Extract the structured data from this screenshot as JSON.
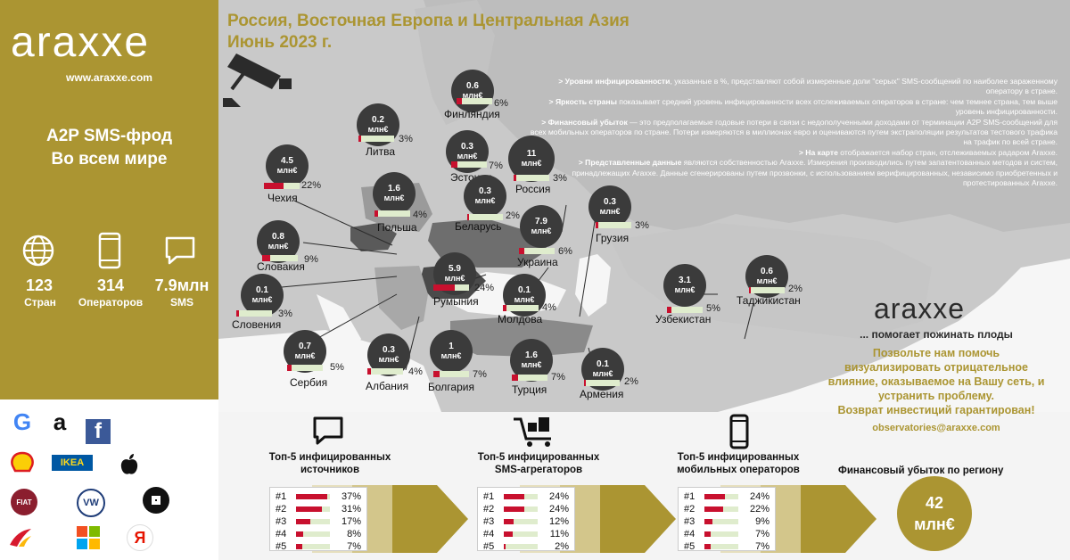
{
  "sidebar": {
    "logo": "araxxe",
    "site": "www.araxxe.com",
    "title_line1": "A2P SMS-фрод",
    "title_line2": "Во всем мире",
    "stats": [
      {
        "value": "123",
        "label": "Стран",
        "icon": "globe-icon"
      },
      {
        "value": "314",
        "label": "Операторов",
        "icon": "phone-icon"
      },
      {
        "value": "7.9млн",
        "label": "SMS",
        "icon": "message-icon"
      }
    ],
    "brands": [
      {
        "name": "google-logo",
        "glyph": "G"
      },
      {
        "name": "amazon-logo",
        "glyph": "a"
      },
      {
        "name": "facebook-logo",
        "glyph": "f"
      },
      {
        "name": "shell-logo",
        "glyph": ""
      },
      {
        "name": "ikea-logo",
        "glyph": "IKEA"
      },
      {
        "name": "apple-logo",
        "glyph": ""
      },
      {
        "name": "fiat-logo",
        "glyph": "FIAT"
      },
      {
        "name": "volkswagen-logo",
        "glyph": "VW"
      },
      {
        "name": "uber-logo",
        "glyph": ""
      },
      {
        "name": "iberia-logo",
        "glyph": ""
      },
      {
        "name": "microsoft-logo",
        "glyph": ""
      },
      {
        "name": "yandex-logo",
        "glyph": "Я"
      }
    ]
  },
  "header": {
    "line1": "Россия, Восточная Европа и Центральная Азия",
    "line2": "Июнь 2023 г."
  },
  "notes": [
    {
      "bold": "> Уровни инфицированности",
      "text": ", указанные в %, представляют собой измеренные доли \"серых\" SMS-сообщений по наиболее зараженному оператору в стране."
    },
    {
      "bold": "> Яркость страны",
      "text": " показывает средний уровень инфицированности всех отслеживаемых операторов в стране: чем темнее страна, тем выше уровень инфицированности."
    },
    {
      "bold": "> Финансовый убыток",
      "text": " — это предполагаемые годовые потери в связи с недополученными доходами от терминации A2P SMS-сообщений для всех мобильных операторов по стране. Потери измеряются в миллионах евро и оцениваются путем экстраполяции результатов тестового трафика на трафик по всей стране."
    },
    {
      "bold": "> На карте",
      "text": " отображается набор стран, отслеживаемых радаром Araxxe."
    },
    {
      "bold": "> Представленные данные",
      "text": " являются собственностью Araxxe. Измерения производились путем запатентованных методов и систем, принадлежащих Araxxe. Данные сгенерированы путем прозвонки, с использованием верифицированных, независимо приобретенных и протестированных Araxxe."
    }
  ],
  "countries": [
    {
      "name": "Финляндия",
      "loss": "0.6",
      "unit": "млн€",
      "pct": "6%",
      "pct_num": 6
    },
    {
      "name": "Литва",
      "loss": "0.2",
      "unit": "млн€",
      "pct": "3%",
      "pct_num": 3
    },
    {
      "name": "Эстония",
      "loss": "0.3",
      "unit": "млн€",
      "pct": "7%",
      "pct_num": 7
    },
    {
      "name": "Россия",
      "loss": "11",
      "unit": "млн€",
      "pct": "3%",
      "pct_num": 3
    },
    {
      "name": "Чехия",
      "loss": "4.5",
      "unit": "млн€",
      "pct": "22%",
      "pct_num": 22
    },
    {
      "name": "Польша",
      "loss": "1.6",
      "unit": "млн€",
      "pct": "4%",
      "pct_num": 4
    },
    {
      "name": "Беларусь",
      "loss": "0.3",
      "unit": "млн€",
      "pct": "2%",
      "pct_num": 2
    },
    {
      "name": "Грузия",
      "loss": "0.3",
      "unit": "млн€",
      "pct": "3%",
      "pct_num": 3
    },
    {
      "name": "Украина",
      "loss": "7.9",
      "unit": "млн€",
      "pct": "6%",
      "pct_num": 6
    },
    {
      "name": "Словакия",
      "loss": "0.8",
      "unit": "млн€",
      "pct": "9%",
      "pct_num": 9
    },
    {
      "name": "Румыния",
      "loss": "5.9",
      "unit": "млн€",
      "pct": "24%",
      "pct_num": 24
    },
    {
      "name": "Словения",
      "loss": "0.1",
      "unit": "млн€",
      "pct": "3%",
      "pct_num": 3
    },
    {
      "name": "Молдова",
      "loss": "0.1",
      "unit": "млн€",
      "pct": "4%",
      "pct_num": 4
    },
    {
      "name": "Узбекистан",
      "loss": "3.1",
      "unit": "млн€",
      "pct": "5%",
      "pct_num": 5
    },
    {
      "name": "Таджикистан",
      "loss": "0.6",
      "unit": "млн€",
      "pct": "2%",
      "pct_num": 2
    },
    {
      "name": "Сербия",
      "loss": "0.7",
      "unit": "млн€",
      "pct": "5%",
      "pct_num": 5
    },
    {
      "name": "Албания",
      "loss": "0.3",
      "unit": "млн€",
      "pct": "4%",
      "pct_num": 4
    },
    {
      "name": "Болгария",
      "loss": "1",
      "unit": "млн€",
      "pct": "7%",
      "pct_num": 7
    },
    {
      "name": "Турция",
      "loss": "1.6",
      "unit": "млн€",
      "pct": "7%",
      "pct_num": 7
    },
    {
      "name": "Армения",
      "loss": "0.1",
      "unit": "млн€",
      "pct": "2%",
      "pct_num": 2
    }
  ],
  "promo": {
    "logo": "araxxe",
    "tagline": "... помогает пожинать плоды",
    "text1": "Позвольте нам помочь",
    "text2": "визуализировать отрицательное",
    "text3": "влияние, оказываемое на Вашу сеть, и",
    "text4": "устранить проблему.",
    "text5": "Возврат инвестиций гарантирован!",
    "email": "observatories@araxxe.com"
  },
  "top5": [
    {
      "title1": "Топ-5 инфицированных",
      "title2": "источников",
      "icon": "chat-bubble-icon",
      "rows": [
        {
          "rank": "#1",
          "pct": "37%",
          "v": 37
        },
        {
          "rank": "#2",
          "pct": "31%",
          "v": 31
        },
        {
          "rank": "#3",
          "pct": "17%",
          "v": 17
        },
        {
          "rank": "#4",
          "pct": "8%",
          "v": 8
        },
        {
          "rank": "#5",
          "pct": "7%",
          "v": 7
        }
      ]
    },
    {
      "title1": "Топ-5 инфицированных",
      "title2": "SMS-агрегаторов",
      "icon": "cart-icon",
      "rows": [
        {
          "rank": "#1",
          "pct": "24%",
          "v": 24
        },
        {
          "rank": "#2",
          "pct": "24%",
          "v": 24
        },
        {
          "rank": "#3",
          "pct": "12%",
          "v": 12
        },
        {
          "rank": "#4",
          "pct": "11%",
          "v": 11
        },
        {
          "rank": "#5",
          "pct": "2%",
          "v": 2
        }
      ]
    },
    {
      "title1": "Топ-5 инфицированных",
      "title2": "мобильных операторов",
      "icon": "mobile-icon",
      "rows": [
        {
          "rank": "#1",
          "pct": "24%",
          "v": 24
        },
        {
          "rank": "#2",
          "pct": "22%",
          "v": 22
        },
        {
          "rank": "#3",
          "pct": "9%",
          "v": 9
        },
        {
          "rank": "#4",
          "pct": "7%",
          "v": 7
        },
        {
          "rank": "#5",
          "pct": "7%",
          "v": 7
        }
      ]
    }
  ],
  "total": {
    "label": "Финансовый убыток по региону",
    "value": "42",
    "unit": "млн€"
  },
  "colors": {
    "gold": "#ab9532",
    "dark": "#3b3b3b",
    "red": "#c8102e",
    "light_bar": "#dfeccd"
  }
}
